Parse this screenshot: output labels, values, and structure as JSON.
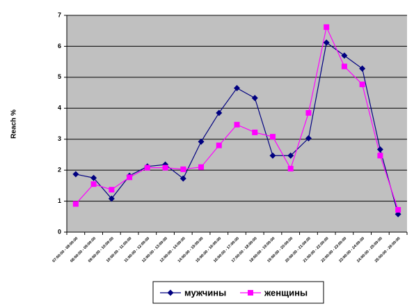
{
  "chart_data": {
    "type": "line",
    "y_label": "Reach %",
    "categories": [
      "07:00:00 - 08:00:00",
      "08:00:00 - 09:00:00",
      "09:00:00 - 10:00:00",
      "10:00:00 - 11:00:00",
      "11:00:00 - 12:00:00",
      "12:00:00 - 13:00:00",
      "13:00:00 - 14:00:00",
      "14:00:00 - 15:00:00",
      "15:00:00 - 16:00:00",
      "16:00:00 - 17:00:00",
      "17:00:00 - 18:00:00",
      "18:00:00 - 19:00:00",
      "19:00:00 - 20:00:00",
      "20:00:00 - 21:00:00",
      "21:00:00 - 22:00:00",
      "22:00:00 - 23:00:00",
      "23:00:00 - 24:00:00",
      "24:00:00 - 25:00:00",
      "25:00:00 - 26:00:00"
    ],
    "series": [
      {
        "name": "мужчины",
        "color": "#000080",
        "marker": "diamond",
        "values": [
          1.87,
          1.75,
          1.08,
          1.82,
          2.12,
          2.18,
          1.73,
          2.92,
          3.85,
          4.65,
          4.33,
          2.47,
          2.47,
          3.03,
          6.12,
          5.7,
          5.28,
          2.67,
          0.58
        ]
      },
      {
        "name": "женщины",
        "color": "#ff00ff",
        "marker": "square",
        "values": [
          0.91,
          1.55,
          1.37,
          1.77,
          2.08,
          2.08,
          2.03,
          2.1,
          2.8,
          3.47,
          3.22,
          3.08,
          2.05,
          3.85,
          6.62,
          5.35,
          4.77,
          2.47,
          0.72
        ]
      }
    ],
    "ylim": [
      0,
      7
    ],
    "yticks": [
      0,
      1,
      2,
      3,
      4,
      5,
      6,
      7
    ],
    "grid": true,
    "legend": "bottom"
  }
}
